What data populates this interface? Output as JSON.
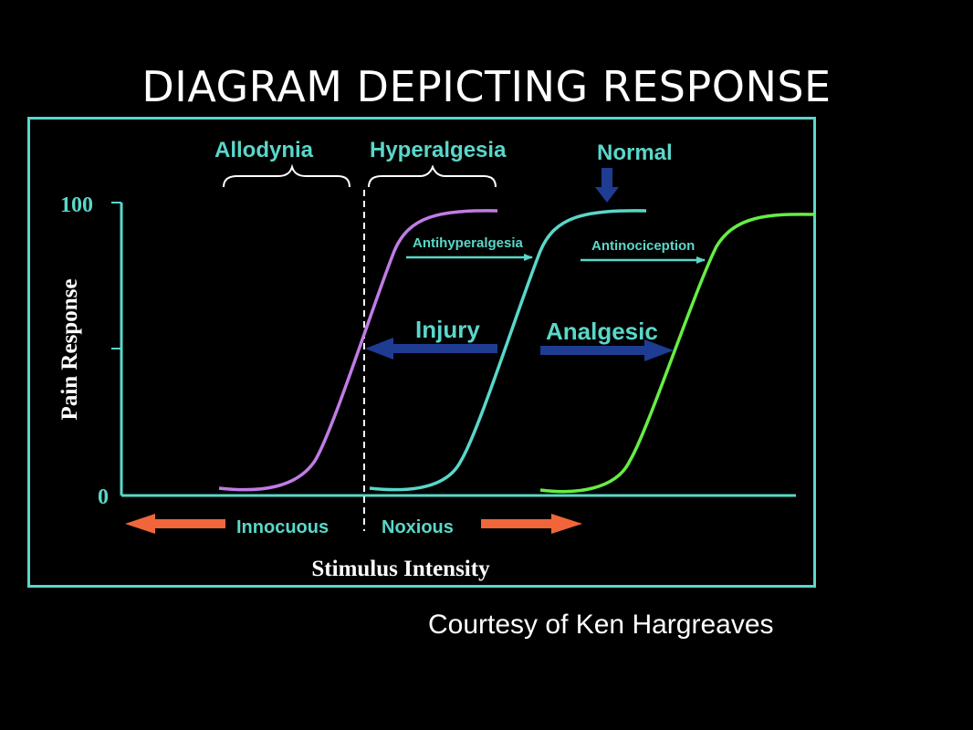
{
  "title": "DIAGRAM DEPICTING RESPONSE",
  "credit": "Courtesy of Ken Hargreaves",
  "diagram": {
    "y_axis_label": "Pain Response",
    "x_axis_label": "Stimulus Intensity",
    "y_tick_top": "100",
    "y_tick_bottom": "0",
    "region_left": "Allodynia",
    "region_right": "Hyperalgesia",
    "normal_label": "Normal",
    "antihyperalgesia_label": "Antihyperalgesia",
    "antinociception_label": "Antinociception",
    "injury_label": "Injury",
    "analgesic_label": "Analgesic",
    "innocuous_label": "Innocuous",
    "noxious_label": "Noxious"
  },
  "colors": {
    "frame": "#5ad7c9",
    "curve_allodynia": "#c07ce6",
    "curve_normal": "#5ad7c9",
    "curve_analgesic": "#66ee44",
    "arrow_blue": "#1f3c93",
    "arrow_orange": "#f0663a",
    "label_cyan": "#5ad7c9",
    "title": "#ffffff"
  }
}
